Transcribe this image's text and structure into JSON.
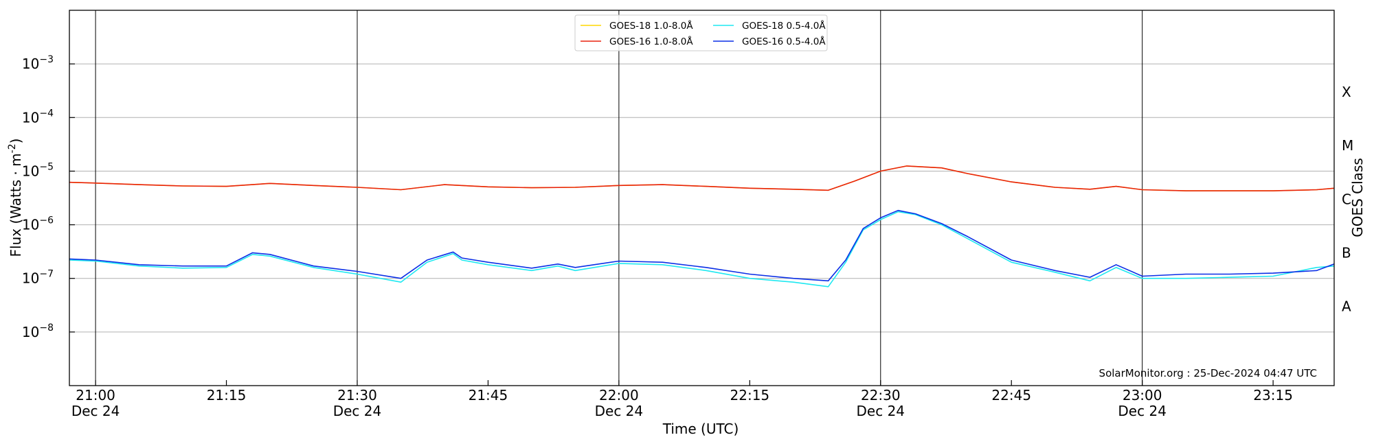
{
  "chart_data": {
    "type": "line",
    "y_scale": "log",
    "ylim": [
      1e-09,
      0.01
    ],
    "xlim": [
      "2024-12-24 20:57",
      "2024-12-24 23:22"
    ],
    "ylabel": "Flux (Watts · m",
    "ylabel_sup": "-2",
    "ylabel_close": ")",
    "xlabel": "Time (UTC)",
    "right_label": "GOES Class",
    "grid": "horizontal",
    "legend_position": "top-center",
    "credit": "SolarMonitor.org : 25-Dec-2024 04:47 UTC",
    "y_ticks": [
      {
        "value": 1e-08,
        "base": "10",
        "exp": "−8"
      },
      {
        "value": 1e-07,
        "base": "10",
        "exp": "−7"
      },
      {
        "value": 1e-06,
        "base": "10",
        "exp": "−6"
      },
      {
        "value": 1e-05,
        "base": "10",
        "exp": "−5"
      },
      {
        "value": 0.0001,
        "base": "10",
        "exp": "−4"
      },
      {
        "value": 0.001,
        "base": "10",
        "exp": "−3"
      }
    ],
    "x_ticks": [
      {
        "time": "21:00",
        "date": "Dec 24"
      },
      {
        "time": "21:15",
        "date": ""
      },
      {
        "time": "21:30",
        "date": "Dec 24"
      },
      {
        "time": "21:45",
        "date": ""
      },
      {
        "time": "22:00",
        "date": "Dec 24"
      },
      {
        "time": "22:15",
        "date": ""
      },
      {
        "time": "22:30",
        "date": "Dec 24"
      },
      {
        "time": "22:45",
        "date": ""
      },
      {
        "time": "23:00",
        "date": "Dec 24"
      },
      {
        "time": "23:15",
        "date": ""
      }
    ],
    "vlines": [
      "21:00",
      "21:30",
      "22:00",
      "22:30",
      "23:00"
    ],
    "class_labels": [
      {
        "label": "A",
        "value": 3e-08
      },
      {
        "label": "B",
        "value": 3e-07
      },
      {
        "label": "C",
        "value": 3e-06
      },
      {
        "label": "M",
        "value": 3e-05
      },
      {
        "label": "X",
        "value": 0.0003
      }
    ],
    "legend_columns": [
      [
        "GOES-18 1.0-8.0Å",
        "GOES-16 1.0-8.0Å"
      ],
      [
        "GOES-18 0.5-4.0Å",
        "GOES-16 0.5-4.0Å"
      ]
    ],
    "series": [
      {
        "name": "GOES-18 1.0-8.0Å",
        "color": "#ffd700",
        "x": [
          "20:57",
          "21:00",
          "21:05",
          "21:10",
          "21:15",
          "21:20",
          "21:25",
          "21:30",
          "21:35",
          "21:40",
          "21:45",
          "21:50",
          "21:55",
          "22:00",
          "22:05",
          "22:10",
          "22:15",
          "22:20",
          "22:24",
          "22:27",
          "22:30",
          "22:33",
          "22:37",
          "22:40",
          "22:45",
          "22:50",
          "22:54",
          "22:57",
          "23:00",
          "23:05",
          "23:10",
          "23:15",
          "23:20",
          "23:22"
        ],
        "values": [
          6.2e-06,
          6e-06,
          5.6e-06,
          5.3e-06,
          5.2e-06,
          5.9e-06,
          5.4e-06,
          5e-06,
          4.5e-06,
          5.6e-06,
          5.1e-06,
          4.9e-06,
          5e-06,
          5.4e-06,
          5.6e-06,
          5.2e-06,
          4.8e-06,
          4.6e-06,
          4.4e-06,
          6.5e-06,
          1e-05,
          1.25e-05,
          1.15e-05,
          9e-06,
          6.3e-06,
          5e-06,
          4.6e-06,
          5.2e-06,
          4.5e-06,
          4.3e-06,
          4.3e-06,
          4.3e-06,
          4.5e-06,
          4.8e-06
        ]
      },
      {
        "name": "GOES-16 1.0-8.0Å",
        "color": "#e8220e",
        "x": [
          "20:57",
          "21:00",
          "21:05",
          "21:10",
          "21:15",
          "21:20",
          "21:25",
          "21:30",
          "21:35",
          "21:40",
          "21:45",
          "21:50",
          "21:55",
          "22:00",
          "22:05",
          "22:10",
          "22:15",
          "22:20",
          "22:24",
          "22:27",
          "22:30",
          "22:33",
          "22:37",
          "22:40",
          "22:45",
          "22:50",
          "22:54",
          "22:57",
          "23:00",
          "23:05",
          "23:10",
          "23:15",
          "23:20",
          "23:22"
        ],
        "values": [
          6.2e-06,
          6e-06,
          5.6e-06,
          5.3e-06,
          5.2e-06,
          5.9e-06,
          5.4e-06,
          5e-06,
          4.5e-06,
          5.6e-06,
          5.1e-06,
          4.9e-06,
          5e-06,
          5.4e-06,
          5.6e-06,
          5.2e-06,
          4.8e-06,
          4.6e-06,
          4.4e-06,
          6.5e-06,
          1e-05,
          1.25e-05,
          1.15e-05,
          9e-06,
          6.3e-06,
          5e-06,
          4.6e-06,
          5.2e-06,
          4.5e-06,
          4.3e-06,
          4.3e-06,
          4.3e-06,
          4.5e-06,
          4.8e-06
        ]
      },
      {
        "name": "GOES-18 0.5-4.0Å",
        "color": "#1ee8f0",
        "x": [
          "20:57",
          "21:00",
          "21:05",
          "21:10",
          "21:15",
          "21:18",
          "21:20",
          "21:25",
          "21:30",
          "21:35",
          "21:38",
          "21:41",
          "21:42",
          "21:45",
          "21:50",
          "21:53",
          "21:55",
          "22:00",
          "22:05",
          "22:10",
          "22:15",
          "22:20",
          "22:24",
          "22:26",
          "22:28",
          "22:30",
          "22:32",
          "22:34",
          "22:37",
          "22:40",
          "22:45",
          "22:50",
          "22:54",
          "22:57",
          "23:00",
          "23:05",
          "23:10",
          "23:15",
          "23:20",
          "23:22"
        ],
        "values": [
          2.2e-07,
          2.1e-07,
          1.7e-07,
          1.55e-07,
          1.6e-07,
          2.8e-07,
          2.6e-07,
          1.6e-07,
          1.2e-07,
          8.5e-08,
          2e-07,
          2.9e-07,
          2.2e-07,
          1.8e-07,
          1.4e-07,
          1.7e-07,
          1.4e-07,
          1.9e-07,
          1.8e-07,
          1.4e-07,
          1e-07,
          8.5e-08,
          7e-08,
          2e-07,
          8e-07,
          1.25e-06,
          1.75e-06,
          1.55e-06,
          1e-06,
          5.5e-07,
          2e-07,
          1.3e-07,
          9e-08,
          1.6e-07,
          1e-07,
          1e-07,
          1.05e-07,
          1.1e-07,
          1.6e-07,
          1.7e-07
        ]
      },
      {
        "name": "GOES-16 0.5-4.0Å",
        "color": "#0a2ee6",
        "x": [
          "20:57",
          "21:00",
          "21:05",
          "21:10",
          "21:15",
          "21:18",
          "21:20",
          "21:25",
          "21:30",
          "21:35",
          "21:38",
          "21:41",
          "21:42",
          "21:45",
          "21:50",
          "21:53",
          "21:55",
          "22:00",
          "22:05",
          "22:10",
          "22:15",
          "22:20",
          "22:24",
          "22:26",
          "22:28",
          "22:30",
          "22:32",
          "22:34",
          "22:37",
          "22:40",
          "22:45",
          "22:50",
          "22:54",
          "22:57",
          "23:00",
          "23:05",
          "23:10",
          "23:15",
          "23:20",
          "23:22"
        ],
        "values": [
          2.3e-07,
          2.2e-07,
          1.8e-07,
          1.7e-07,
          1.7e-07,
          3e-07,
          2.8e-07,
          1.7e-07,
          1.35e-07,
          1e-07,
          2.2e-07,
          3.1e-07,
          2.4e-07,
          2e-07,
          1.55e-07,
          1.85e-07,
          1.6e-07,
          2.1e-07,
          2e-07,
          1.6e-07,
          1.2e-07,
          1e-07,
          9e-08,
          2.2e-07,
          8.5e-07,
          1.35e-06,
          1.85e-06,
          1.6e-06,
          1.05e-06,
          6e-07,
          2.2e-07,
          1.4e-07,
          1.05e-07,
          1.8e-07,
          1.1e-07,
          1.2e-07,
          1.2e-07,
          1.25e-07,
          1.4e-07,
          1.85e-07
        ]
      }
    ]
  }
}
